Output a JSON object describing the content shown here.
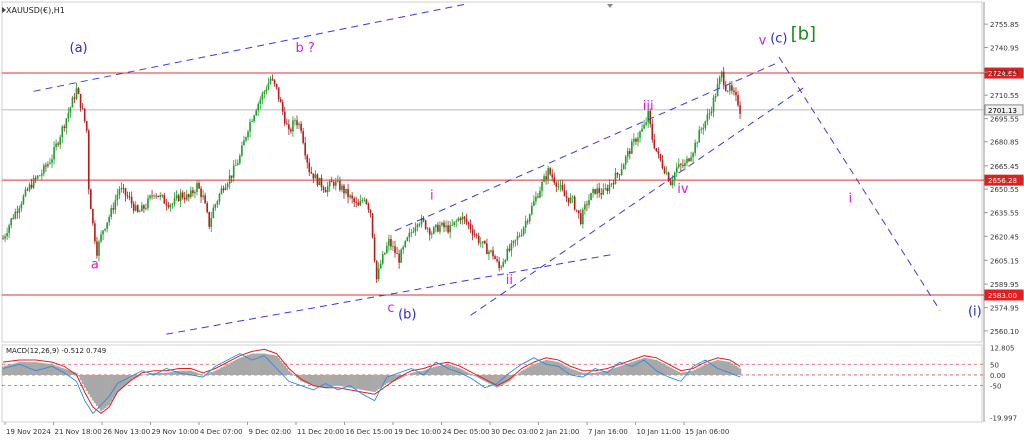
{
  "chart_data": {
    "type": "candlestick",
    "symbol_title": "XAUUSD(€),H1",
    "price_axis": {
      "range": [
        2553,
        2770
      ],
      "ticks": [
        "2755.85",
        "2740.95",
        "2725.25",
        "2710.55",
        "2695.55",
        "2680.85",
        "2665.45",
        "2650.55",
        "2635.55",
        "2620.45",
        "2605.15",
        "2589.95",
        "2574.95",
        "2560.10"
      ]
    },
    "price_series": [
      [
        0,
        2619
      ],
      [
        4,
        2631
      ],
      [
        9,
        2643
      ],
      [
        14,
        2654
      ],
      [
        19,
        2661
      ],
      [
        24,
        2671
      ],
      [
        29,
        2689
      ],
      [
        33,
        2703
      ],
      [
        36,
        2714
      ],
      [
        39,
        2700
      ],
      [
        41,
        2688
      ],
      [
        42,
        2652
      ],
      [
        44,
        2628
      ],
      [
        46,
        2611
      ],
      [
        49,
        2625
      ],
      [
        53,
        2636
      ],
      [
        57,
        2651
      ],
      [
        62,
        2644
      ],
      [
        66,
        2635
      ],
      [
        70,
        2640
      ],
      [
        74,
        2649
      ],
      [
        79,
        2643
      ],
      [
        83,
        2641
      ],
      [
        87,
        2647
      ],
      [
        91,
        2645
      ],
      [
        95,
        2653
      ],
      [
        98,
        2645
      ],
      [
        101,
        2628
      ],
      [
        103,
        2638
      ],
      [
        108,
        2653
      ],
      [
        112,
        2660
      ],
      [
        116,
        2671
      ],
      [
        120,
        2690
      ],
      [
        124,
        2703
      ],
      [
        128,
        2713
      ],
      [
        131,
        2721
      ],
      [
        134,
        2714
      ],
      [
        137,
        2700
      ],
      [
        140,
        2686
      ],
      [
        143,
        2695
      ],
      [
        146,
        2690
      ],
      [
        148,
        2675
      ],
      [
        150,
        2663
      ],
      [
        154,
        2656
      ],
      [
        158,
        2651
      ],
      [
        162,
        2655
      ],
      [
        166,
        2651
      ],
      [
        170,
        2645
      ],
      [
        174,
        2639
      ],
      [
        177,
        2646
      ],
      [
        180,
        2636
      ],
      [
        183,
        2593
      ],
      [
        185,
        2603
      ],
      [
        189,
        2617
      ],
      [
        194,
        2606
      ],
      [
        198,
        2618
      ],
      [
        203,
        2631
      ],
      [
        206,
        2629
      ],
      [
        210,
        2623
      ],
      [
        214,
        2627
      ],
      [
        219,
        2625
      ],
      [
        224,
        2633
      ],
      [
        228,
        2628
      ],
      [
        232,
        2620
      ],
      [
        236,
        2613
      ],
      [
        240,
        2609
      ],
      [
        243,
        2600
      ],
      [
        246,
        2608
      ],
      [
        250,
        2615
      ],
      [
        254,
        2624
      ],
      [
        259,
        2639
      ],
      [
        263,
        2651
      ],
      [
        267,
        2662
      ],
      [
        271,
        2655
      ],
      [
        275,
        2646
      ],
      [
        279,
        2643
      ],
      [
        283,
        2631
      ],
      [
        286,
        2642
      ],
      [
        290,
        2650
      ],
      [
        294,
        2648
      ],
      [
        298,
        2655
      ],
      [
        302,
        2662
      ],
      [
        306,
        2673
      ],
      [
        310,
        2683
      ],
      [
        314,
        2690
      ],
      [
        316,
        2698
      ],
      [
        318,
        2683
      ],
      [
        321,
        2671
      ],
      [
        325,
        2661
      ],
      [
        327,
        2655
      ],
      [
        330,
        2664
      ],
      [
        334,
        2666
      ],
      [
        338,
        2676
      ],
      [
        342,
        2689
      ],
      [
        346,
        2699
      ],
      [
        348,
        2707
      ],
      [
        350,
        2716
      ],
      [
        352,
        2724
      ],
      [
        354,
        2716
      ],
      [
        356,
        2714
      ],
      [
        358,
        2710
      ],
      [
        360,
        2706
      ],
      [
        361,
        2701
      ]
    ],
    "levels": [
      {
        "value": 2724.65,
        "label": "2724.65",
        "style": "red-box"
      },
      {
        "value": 2701.13,
        "label": "2701.13",
        "style": "gray-box"
      },
      {
        "value": 2656.28,
        "label": "2656.28",
        "style": "red-box"
      },
      {
        "value": 2583.0,
        "label": "2583.00",
        "style": "red-box"
      }
    ],
    "trend_lines": [
      [
        [
          15,
          2713
        ],
        [
          228,
          2769
        ]
      ],
      [
        [
          80,
          2558
        ],
        [
          299,
          2609
        ]
      ],
      [
        [
          192,
          2624
        ],
        [
          379,
          2731
        ]
      ],
      [
        [
          229,
          2570
        ],
        [
          394,
          2717
        ]
      ],
      [
        [
          380,
          2735
        ],
        [
          459,
          2573
        ]
      ]
    ],
    "wave_labels": [
      {
        "text": "(a)",
        "x": 37,
        "price": 2738,
        "color": "#2a2ac8"
      },
      {
        "text": "a",
        "x": 45,
        "price": 2600,
        "color": "#d21ed2"
      },
      {
        "text": "b ?",
        "x": 148,
        "price": 2738,
        "color": "#d21ed2"
      },
      {
        "text": "c",
        "x": 190,
        "price": 2572,
        "color": "#d21ed2"
      },
      {
        "text": "(b)",
        "x": 198,
        "price": 2568,
        "color": "#2a2ac8"
      },
      {
        "text": "i",
        "x": 210,
        "price": 2644,
        "color": "#d21ed2"
      },
      {
        "text": "ii",
        "x": 248,
        "price": 2590,
        "color": "#d21ed2"
      },
      {
        "text": "iii",
        "x": 316,
        "price": 2701,
        "color": "#d21ed2"
      },
      {
        "text": "iv",
        "x": 333,
        "price": 2648,
        "color": "#d21ed2"
      },
      {
        "text": "v",
        "x": 372,
        "price": 2743,
        "color": "#d21ed2"
      },
      {
        "text": "(c)",
        "x": 380,
        "price": 2744,
        "color": "#2a2ac8"
      },
      {
        "text": "[b]",
        "x": 392,
        "price": 2746,
        "color": "#1e8c1e"
      },
      {
        "text": "i",
        "x": 415,
        "price": 2642,
        "color": "#d21ed2"
      },
      {
        "text": "(i)",
        "x": 476,
        "price": 2570,
        "color": "#2a2ac8"
      }
    ],
    "time_ticks": [
      "19 Nov 2024",
      "21 Nov 18:00",
      "26 Nov 13:00",
      "29 Nov 10:00",
      "4 Dec 07:00",
      "9 Dec 02:00",
      "11 Dec 20:00",
      "16 Dec 15:00",
      "19 Dec 10:00",
      "24 Dec 05:00",
      "30 Dec 03:00",
      "2 Jan 21:00",
      "7 Jan 16:00",
      "10 Jan 11:00",
      "15 Jan 06:00"
    ],
    "macd": {
      "title": "MACD(12,26,9) -0.512 0.749",
      "range": [
        -22,
        14
      ],
      "ticks": [
        "12.805",
        "0.00",
        "-19.997"
      ],
      "levels": [
        {
          "value": 5,
          "label": "50"
        },
        {
          "value": 0,
          "label": ""
        },
        {
          "value": -5,
          "label": "-50"
        }
      ],
      "histogram": [
        [
          0,
          4
        ],
        [
          8,
          6
        ],
        [
          16,
          6
        ],
        [
          24,
          5
        ],
        [
          30,
          3
        ],
        [
          36,
          1
        ],
        [
          40,
          -6
        ],
        [
          44,
          -12
        ],
        [
          48,
          -17
        ],
        [
          52,
          -14
        ],
        [
          56,
          -8
        ],
        [
          62,
          -3
        ],
        [
          68,
          0
        ],
        [
          74,
          1
        ],
        [
          80,
          1
        ],
        [
          86,
          2
        ],
        [
          92,
          2
        ],
        [
          98,
          0
        ],
        [
          104,
          2
        ],
        [
          110,
          5
        ],
        [
          116,
          8
        ],
        [
          122,
          10
        ],
        [
          128,
          10
        ],
        [
          134,
          9
        ],
        [
          140,
          2
        ],
        [
          146,
          -3
        ],
        [
          152,
          -5
        ],
        [
          158,
          -6
        ],
        [
          164,
          -5
        ],
        [
          170,
          -6
        ],
        [
          176,
          -7
        ],
        [
          182,
          -8
        ],
        [
          188,
          -4
        ],
        [
          194,
          -2
        ],
        [
          200,
          1
        ],
        [
          206,
          2
        ],
        [
          212,
          4
        ],
        [
          218,
          5
        ],
        [
          224,
          3
        ],
        [
          230,
          0
        ],
        [
          236,
          -3
        ],
        [
          242,
          -6
        ],
        [
          248,
          -3
        ],
        [
          254,
          2
        ],
        [
          260,
          5
        ],
        [
          266,
          7
        ],
        [
          272,
          6
        ],
        [
          278,
          3
        ],
        [
          284,
          1
        ],
        [
          290,
          1
        ],
        [
          296,
          2
        ],
        [
          302,
          4
        ],
        [
          308,
          6
        ],
        [
          314,
          8
        ],
        [
          320,
          7
        ],
        [
          326,
          4
        ],
        [
          332,
          1
        ],
        [
          338,
          2
        ],
        [
          344,
          5
        ],
        [
          350,
          7
        ],
        [
          356,
          6
        ],
        [
          361,
          3
        ]
      ],
      "signal": [
        [
          0,
          6
        ],
        [
          8,
          7
        ],
        [
          16,
          7
        ],
        [
          24,
          6
        ],
        [
          30,
          4
        ],
        [
          36,
          0
        ],
        [
          40,
          -8
        ],
        [
          44,
          -15
        ],
        [
          48,
          -18
        ],
        [
          52,
          -15
        ],
        [
          56,
          -8
        ],
        [
          62,
          -3
        ],
        [
          68,
          1
        ],
        [
          74,
          2
        ],
        [
          80,
          2
        ],
        [
          86,
          3
        ],
        [
          92,
          3
        ],
        [
          98,
          1
        ],
        [
          104,
          3
        ],
        [
          110,
          6
        ],
        [
          116,
          9
        ],
        [
          122,
          11
        ],
        [
          128,
          12
        ],
        [
          134,
          10
        ],
        [
          140,
          3
        ],
        [
          146,
          -2
        ],
        [
          152,
          -5
        ],
        [
          158,
          -6
        ],
        [
          164,
          -6
        ],
        [
          170,
          -7
        ],
        [
          176,
          -8
        ],
        [
          182,
          -9
        ],
        [
          188,
          -5
        ],
        [
          194,
          -1
        ],
        [
          200,
          2
        ],
        [
          206,
          3
        ],
        [
          212,
          5
        ],
        [
          218,
          6
        ],
        [
          224,
          4
        ],
        [
          230,
          1
        ],
        [
          236,
          -2
        ],
        [
          242,
          -5
        ],
        [
          248,
          -2
        ],
        [
          254,
          3
        ],
        [
          260,
          6
        ],
        [
          266,
          8
        ],
        [
          272,
          7
        ],
        [
          278,
          4
        ],
        [
          284,
          2
        ],
        [
          290,
          2
        ],
        [
          296,
          3
        ],
        [
          302,
          5
        ],
        [
          308,
          7
        ],
        [
          314,
          9
        ],
        [
          320,
          8
        ],
        [
          326,
          5
        ],
        [
          332,
          2
        ],
        [
          338,
          3
        ],
        [
          344,
          6
        ],
        [
          350,
          8
        ],
        [
          356,
          7
        ],
        [
          361,
          4
        ]
      ],
      "macd_line": [
        [
          0,
          3
        ],
        [
          8,
          5
        ],
        [
          16,
          2
        ],
        [
          24,
          4
        ],
        [
          30,
          1
        ],
        [
          36,
          -3
        ],
        [
          40,
          -12
        ],
        [
          44,
          -18
        ],
        [
          48,
          -14
        ],
        [
          52,
          -10
        ],
        [
          56,
          -4
        ],
        [
          62,
          -1
        ],
        [
          68,
          2
        ],
        [
          74,
          0
        ],
        [
          80,
          3
        ],
        [
          86,
          1
        ],
        [
          92,
          0
        ],
        [
          98,
          -1
        ],
        [
          104,
          4
        ],
        [
          110,
          7
        ],
        [
          116,
          10
        ],
        [
          122,
          7
        ],
        [
          128,
          9
        ],
        [
          134,
          3
        ],
        [
          140,
          -3
        ],
        [
          146,
          -5
        ],
        [
          152,
          -7
        ],
        [
          158,
          -4
        ],
        [
          164,
          -7
        ],
        [
          170,
          -5
        ],
        [
          176,
          -9
        ],
        [
          182,
          -12
        ],
        [
          188,
          -1
        ],
        [
          194,
          1
        ],
        [
          200,
          3
        ],
        [
          206,
          0
        ],
        [
          212,
          6
        ],
        [
          218,
          3
        ],
        [
          224,
          1
        ],
        [
          230,
          -2
        ],
        [
          236,
          -6
        ],
        [
          242,
          -4
        ],
        [
          248,
          1
        ],
        [
          254,
          5
        ],
        [
          260,
          8
        ],
        [
          266,
          5
        ],
        [
          272,
          4
        ],
        [
          278,
          0
        ],
        [
          284,
          -1
        ],
        [
          290,
          3
        ],
        [
          296,
          1
        ],
        [
          302,
          6
        ],
        [
          308,
          4
        ],
        [
          314,
          7
        ],
        [
          320,
          2
        ],
        [
          326,
          -1
        ],
        [
          332,
          -3
        ],
        [
          338,
          4
        ],
        [
          344,
          7
        ],
        [
          350,
          3
        ],
        [
          356,
          1
        ],
        [
          361,
          -1
        ]
      ]
    }
  }
}
